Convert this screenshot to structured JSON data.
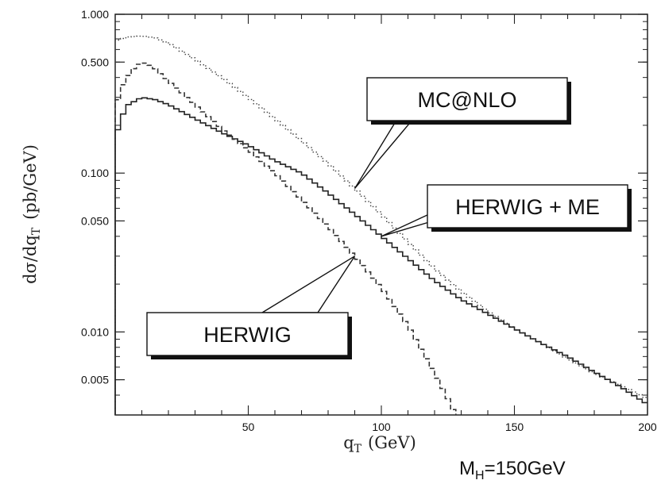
{
  "chart_data": {
    "type": "line",
    "xlabel": "q",
    "xlabel_sub": "T",
    "xlabel_unit": "(GeV)",
    "ylabel_main": "dσ/dq",
    "ylabel_sub": "T",
    "ylabel_unit": "(pb/GeV)",
    "ylog": true,
    "xlim": [
      0,
      200
    ],
    "ylim": [
      0.003,
      1.0
    ],
    "x_ticks": [
      50,
      100,
      150,
      200
    ],
    "x_tick_labels": [
      "50",
      "100",
      "150",
      "200"
    ],
    "y_ticks": [
      1.0,
      0.5,
      0.1,
      0.05,
      0.01,
      0.005
    ],
    "y_tick_labels": [
      "1.000",
      "0.500",
      "0.100",
      "0.050",
      "0.010",
      "0.005"
    ],
    "series": [
      {
        "name": "MC@NLO",
        "style": "dotted",
        "points": [
          [
            0,
            0.68
          ],
          [
            5,
            0.72
          ],
          [
            10,
            0.73
          ],
          [
            15,
            0.71
          ],
          [
            20,
            0.66
          ],
          [
            30,
            0.52
          ],
          [
            40,
            0.4
          ],
          [
            50,
            0.3
          ],
          [
            60,
            0.22
          ],
          [
            70,
            0.16
          ],
          [
            80,
            0.115
          ],
          [
            90,
            0.08
          ],
          [
            100,
            0.055
          ],
          [
            110,
            0.037
          ],
          [
            120,
            0.025
          ],
          [
            130,
            0.018
          ],
          [
            140,
            0.0135
          ],
          [
            150,
            0.0105
          ],
          [
            160,
            0.0085
          ],
          [
            170,
            0.0068
          ],
          [
            180,
            0.0055
          ],
          [
            190,
            0.0046
          ],
          [
            200,
            0.0038
          ]
        ]
      },
      {
        "name": "HERWIG + ME",
        "style": "solid",
        "points": [
          [
            0,
            0.16
          ],
          [
            2,
            0.22
          ],
          [
            5,
            0.27
          ],
          [
            10,
            0.3
          ],
          [
            15,
            0.29
          ],
          [
            20,
            0.27
          ],
          [
            30,
            0.22
          ],
          [
            40,
            0.18
          ],
          [
            50,
            0.15
          ],
          [
            60,
            0.12
          ],
          [
            70,
            0.1
          ],
          [
            80,
            0.075
          ],
          [
            90,
            0.055
          ],
          [
            100,
            0.04
          ],
          [
            110,
            0.029
          ],
          [
            120,
            0.021
          ],
          [
            130,
            0.016
          ],
          [
            140,
            0.013
          ],
          [
            150,
            0.0105
          ],
          [
            160,
            0.0085
          ],
          [
            170,
            0.007
          ],
          [
            180,
            0.0056
          ],
          [
            190,
            0.0045
          ],
          [
            200,
            0.0035
          ]
        ]
      },
      {
        "name": "HERWIG",
        "style": "dashed",
        "points": [
          [
            0,
            0.26
          ],
          [
            3,
            0.36
          ],
          [
            6,
            0.44
          ],
          [
            10,
            0.5
          ],
          [
            14,
            0.47
          ],
          [
            20,
            0.38
          ],
          [
            30,
            0.27
          ],
          [
            40,
            0.19
          ],
          [
            50,
            0.14
          ],
          [
            60,
            0.1
          ],
          [
            70,
            0.068
          ],
          [
            80,
            0.046
          ],
          [
            90,
            0.03
          ],
          [
            100,
            0.019
          ],
          [
            110,
            0.011
          ],
          [
            120,
            0.0055
          ],
          [
            125,
            0.0038
          ],
          [
            128,
            0.003
          ]
        ]
      }
    ],
    "annotations": [
      {
        "text": "MC@NLO",
        "target_x": 90,
        "target_y": 0.08
      },
      {
        "text": "HERWIG + ME",
        "target_x": 100,
        "target_y": 0.04
      },
      {
        "text": "HERWIG",
        "target_x": 90,
        "target_y": 0.03
      }
    ],
    "footer_label": "M",
    "footer_label_sub": "H",
    "footer_label_rest": "=150GeV"
  }
}
